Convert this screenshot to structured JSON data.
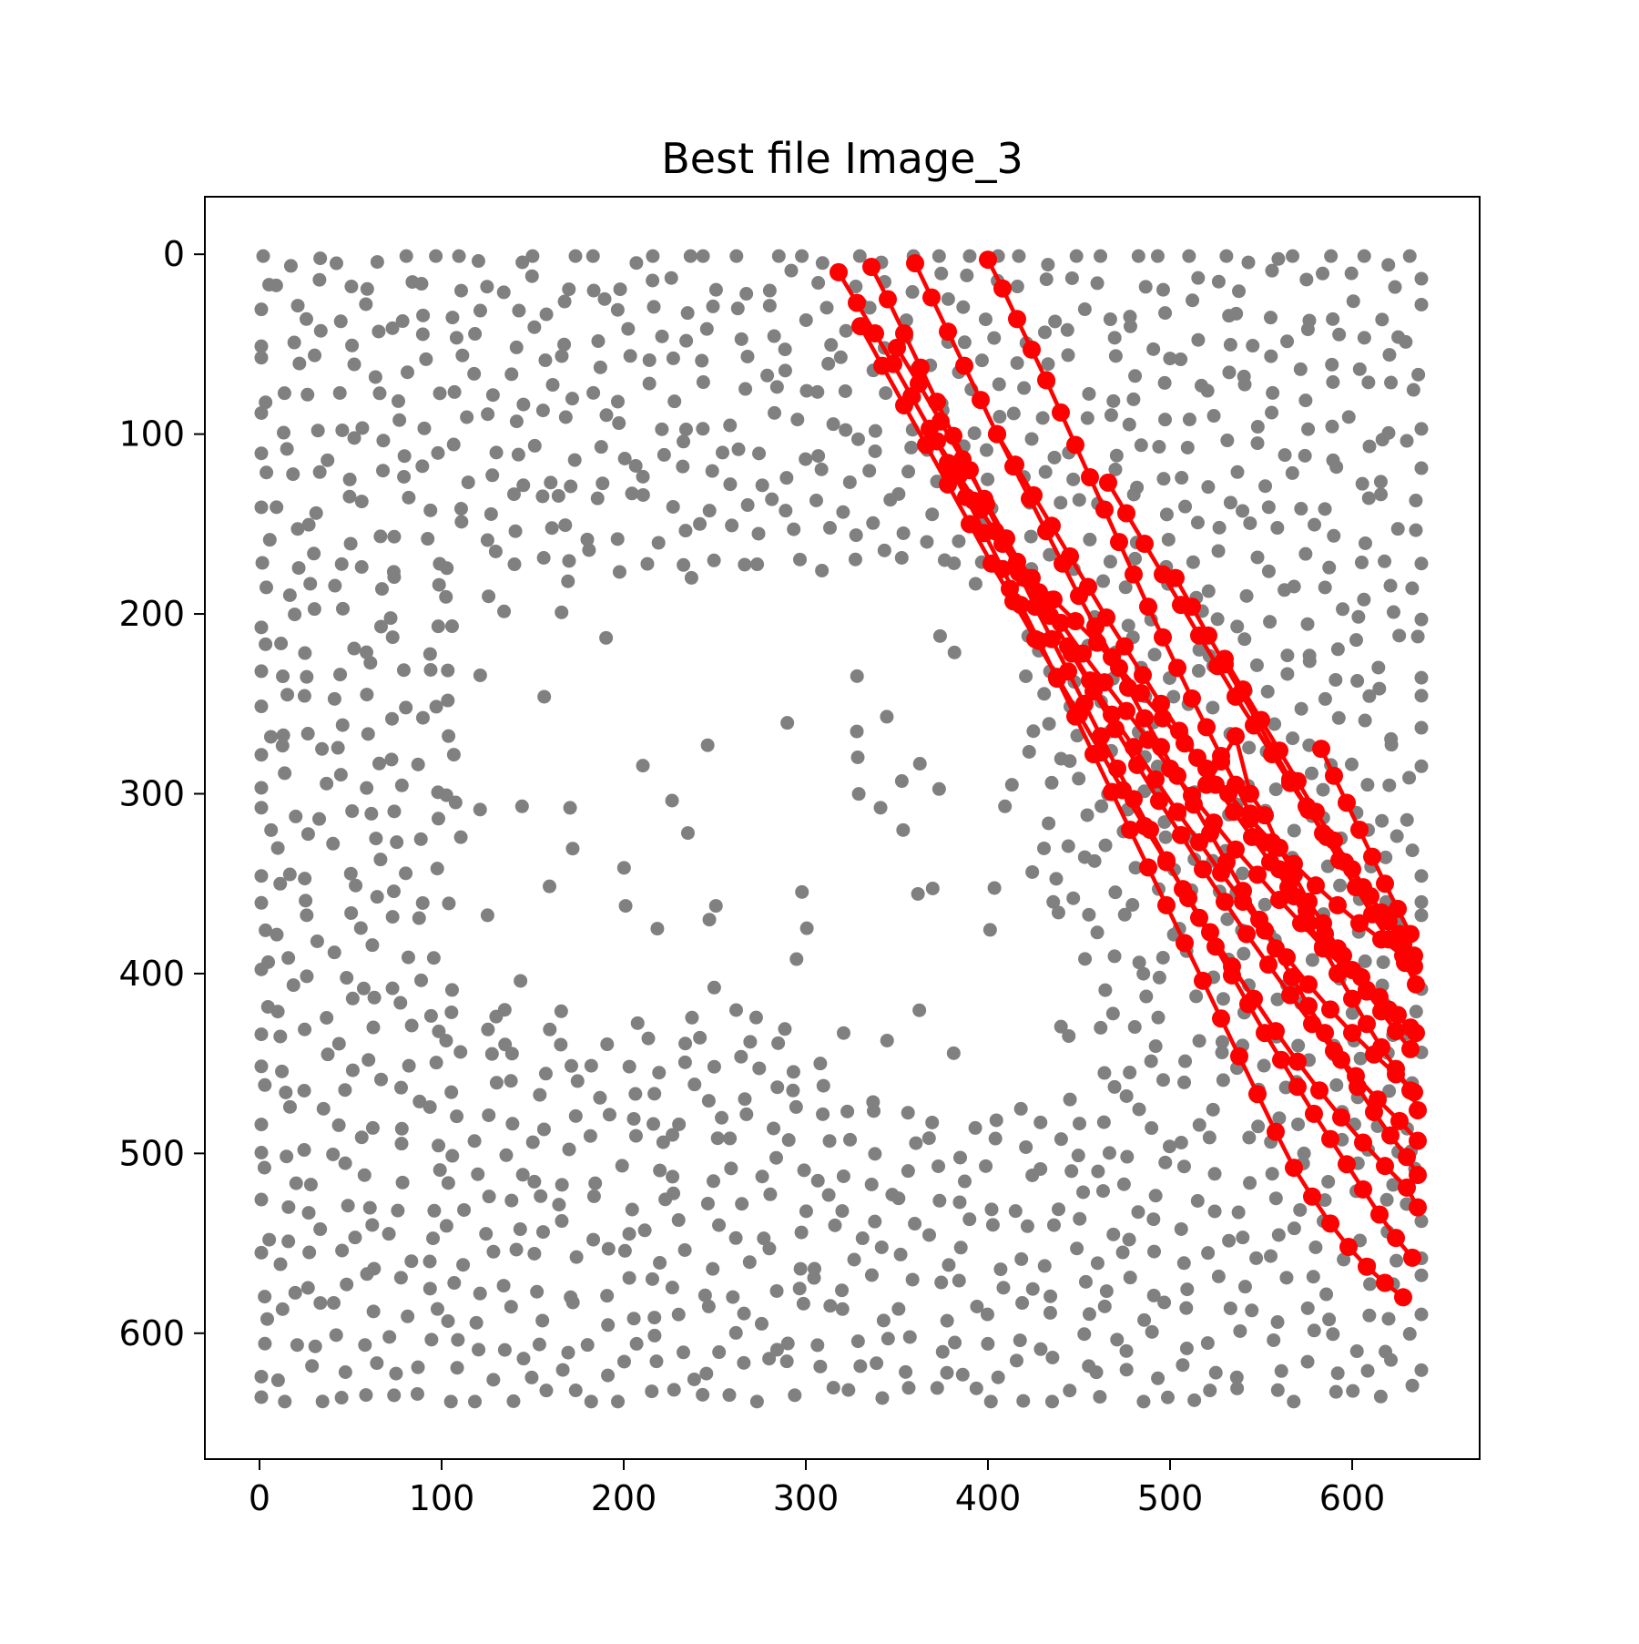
{
  "chart_data": {
    "type": "scatter",
    "title": "Best file Image_3",
    "xlabel": "",
    "ylabel": "",
    "xlim": [
      -30,
      670
    ],
    "ylim": [
      670,
      -32
    ],
    "y_inverted": true,
    "x_ticks": [
      0,
      100,
      200,
      300,
      400,
      500,
      600
    ],
    "y_ticks": [
      0,
      100,
      200,
      300,
      400,
      500,
      600
    ],
    "grid": false,
    "legend": "none",
    "colors": {
      "background_points": "#808080",
      "path": "#ff0000",
      "axes": "#000000"
    },
    "background_points": {
      "name": "",
      "description_free": true,
      "count": 1800,
      "x_range": [
        0,
        640
      ],
      "y_range": [
        0,
        640
      ],
      "empty_regions": [
        {
          "x": [
            110,
            420
          ],
          "y": [
            180,
            420
          ]
        },
        {
          "x": [
            310,
            460
          ],
          "y": [
            380,
            470
          ]
        }
      ]
    },
    "paths": [
      {
        "x": [
          318,
          328,
          338,
          348,
          358,
          368,
          378,
          388,
          398,
          408,
          418,
          428,
          438,
          448,
          458,
          468,
          478,
          488,
          498,
          508,
          518,
          528,
          538,
          548,
          558,
          568,
          578,
          588,
          598,
          608,
          618,
          628
        ],
        "y": [
          10,
          27,
          44,
          61,
          79,
          97,
          116,
          135,
          155,
          175,
          195,
          215,
          236,
          257,
          278,
          299,
          320,
          341,
          362,
          383,
          404,
          425,
          446,
          467,
          488,
          508,
          524,
          539,
          552,
          563,
          572,
          580
        ]
      },
      {
        "x": [
          336,
          345,
          354,
          363,
          372,
          381,
          390,
          399,
          408,
          417,
          426,
          435,
          444,
          453,
          462,
          471,
          480,
          489,
          498,
          507,
          516,
          525,
          534,
          543,
          552,
          561,
          570,
          579,
          588,
          597,
          606,
          615,
          624,
          633
        ],
        "y": [
          7,
          25,
          44,
          63,
          82,
          101,
          120,
          139,
          158,
          177,
          196,
          214,
          232,
          250,
          268,
          286,
          303,
          320,
          337,
          353,
          369,
          385,
          401,
          417,
          433,
          448,
          463,
          478,
          492,
          506,
          520,
          534,
          547,
          558
        ]
      },
      {
        "x": [
          360,
          369,
          378,
          387,
          396,
          405,
          414,
          423,
          432,
          441,
          450,
          459,
          468,
          477,
          486,
          495,
          504,
          513,
          522,
          531,
          540,
          549,
          558,
          567,
          576,
          585,
          594,
          603,
          612,
          621,
          630,
          636
        ],
        "y": [
          5,
          24,
          43,
          62,
          81,
          100,
          118,
          136,
          154,
          172,
          190,
          207,
          224,
          241,
          258,
          274,
          290,
          306,
          322,
          338,
          354,
          370,
          386,
          402,
          418,
          433,
          448,
          463,
          477,
          490,
          502,
          512
        ]
      },
      {
        "x": [
          400,
          408,
          416,
          424,
          432,
          440,
          448,
          456,
          464,
          472,
          480,
          488,
          496,
          504,
          512,
          520,
          528,
          536,
          544,
          552,
          560,
          568,
          576,
          584,
          592,
          600,
          608,
          616,
          624,
          632,
          636
        ],
        "y": [
          3,
          19,
          36,
          53,
          70,
          88,
          106,
          124,
          142,
          160,
          178,
          196,
          213,
          230,
          247,
          263,
          279,
          295,
          311,
          327,
          342,
          357,
          372,
          386,
          400,
          414,
          428,
          441,
          453,
          465,
          476
        ]
      },
      {
        "x": [
          330,
          342,
          354,
          366,
          378,
          390,
          402,
          414,
          426,
          438,
          450,
          462,
          474,
          486,
          498,
          510,
          522,
          534,
          546,
          558,
          570,
          582,
          594,
          606,
          618,
          630,
          636
        ],
        "y": [
          40,
          62,
          84,
          106,
          128,
          150,
          172,
          193,
          214,
          235,
          256,
          277,
          298,
          318,
          338,
          358,
          377,
          396,
          414,
          432,
          449,
          465,
          480,
          494,
          507,
          519,
          530
        ]
      },
      {
        "x": [
          350,
          362,
          374,
          386,
          398,
          410,
          422,
          434,
          446,
          458,
          470,
          482,
          494,
          506,
          518,
          530,
          542,
          554,
          566,
          578,
          590,
          602,
          614,
          626,
          636
        ],
        "y": [
          52,
          72,
          93,
          114,
          136,
          158,
          180,
          201,
          222,
          243,
          264,
          284,
          304,
          323,
          342,
          360,
          378,
          395,
          412,
          428,
          443,
          457,
          470,
          482,
          493
        ]
      },
      {
        "x": [
          372,
          384,
          396,
          408,
          420,
          432,
          444,
          456,
          468,
          480,
          492,
          504,
          516,
          528,
          540,
          552,
          564,
          576,
          588,
          600,
          612,
          624,
          634
        ],
        "y": [
          104,
          123,
          142,
          161,
          180,
          199,
          218,
          237,
          256,
          274,
          292,
          310,
          327,
          344,
          360,
          376,
          391,
          406,
          420,
          433,
          445,
          456,
          466
        ]
      },
      {
        "x": [
          380,
          392,
          404,
          416,
          428,
          440,
          452,
          464,
          476,
          488,
          500,
          512,
          524,
          536,
          548,
          560,
          572,
          584,
          596,
          608,
          620,
          632
        ],
        "y": [
          120,
          137,
          154,
          171,
          188,
          205,
          222,
          238,
          254,
          270,
          286,
          301,
          316,
          331,
          345,
          359,
          372,
          385,
          397,
          409,
          420,
          430
        ]
      },
      {
        "x": [
          405,
          415,
          425,
          435,
          445,
          455,
          465,
          475,
          485,
          495,
          505,
          515,
          525,
          535,
          545,
          555,
          565,
          575,
          585,
          595,
          605,
          615,
          625,
          635
        ],
        "y": [
          100,
          117,
          134,
          151,
          168,
          185,
          202,
          218,
          234,
          250,
          265,
          280,
          295,
          310,
          324,
          338,
          352,
          365,
          378,
          390,
          402,
          413,
          423,
          433
        ]
      },
      {
        "x": [
          412,
          424,
          436,
          448,
          460,
          472,
          484,
          496,
          508,
          520,
          532,
          544,
          556,
          568,
          580,
          592,
          604,
          616,
          628
        ],
        "y": [
          186,
          180,
          192,
          204,
          216,
          230,
          244,
          258,
          272,
          286,
          300,
          314,
          327,
          339,
          351,
          362,
          372,
          381,
          390
        ]
      },
      {
        "x": [
          466,
          476,
          486,
          496,
          506,
          516,
          526,
          536,
          546,
          556,
          566,
          576,
          586,
          596,
          606,
          616,
          626,
          634
        ],
        "y": [
          127,
          144,
          161,
          178,
          195,
          212,
          229,
          246,
          262,
          278,
          294,
          309,
          324,
          338,
          352,
          366,
          378,
          390
        ]
      },
      {
        "x": [
          503,
          512,
          521,
          530,
          539,
          548,
          557,
          566,
          575,
          584,
          593,
          602,
          611,
          620,
          629,
          635
        ],
        "y": [
          180,
          196,
          212,
          228,
          244,
          260,
          276,
          292,
          307,
          322,
          337,
          352,
          367,
          381,
          394,
          406
        ]
      },
      {
        "x": [
          530,
          540,
          550,
          560,
          570,
          580,
          590,
          600,
          610,
          620,
          628,
          634
        ],
        "y": [
          225,
          242,
          259,
          276,
          293,
          310,
          326,
          342,
          357,
          371,
          384,
          396
        ]
      },
      {
        "x": [
          583,
          590,
          597,
          604,
          611,
          618,
          625,
          632
        ],
        "y": [
          275,
          290,
          305,
          320,
          335,
          350,
          364,
          378
        ]
      },
      {
        "x": [
          520,
          528,
          536,
          544,
          552,
          560,
          568,
          576,
          584,
          592,
          600,
          608,
          616,
          624,
          632
        ],
        "y": [
          295,
          282,
          268,
          300,
          312,
          330,
          345,
          360,
          372,
          386,
          398,
          410,
          421,
          432,
          442
        ]
      }
    ]
  }
}
